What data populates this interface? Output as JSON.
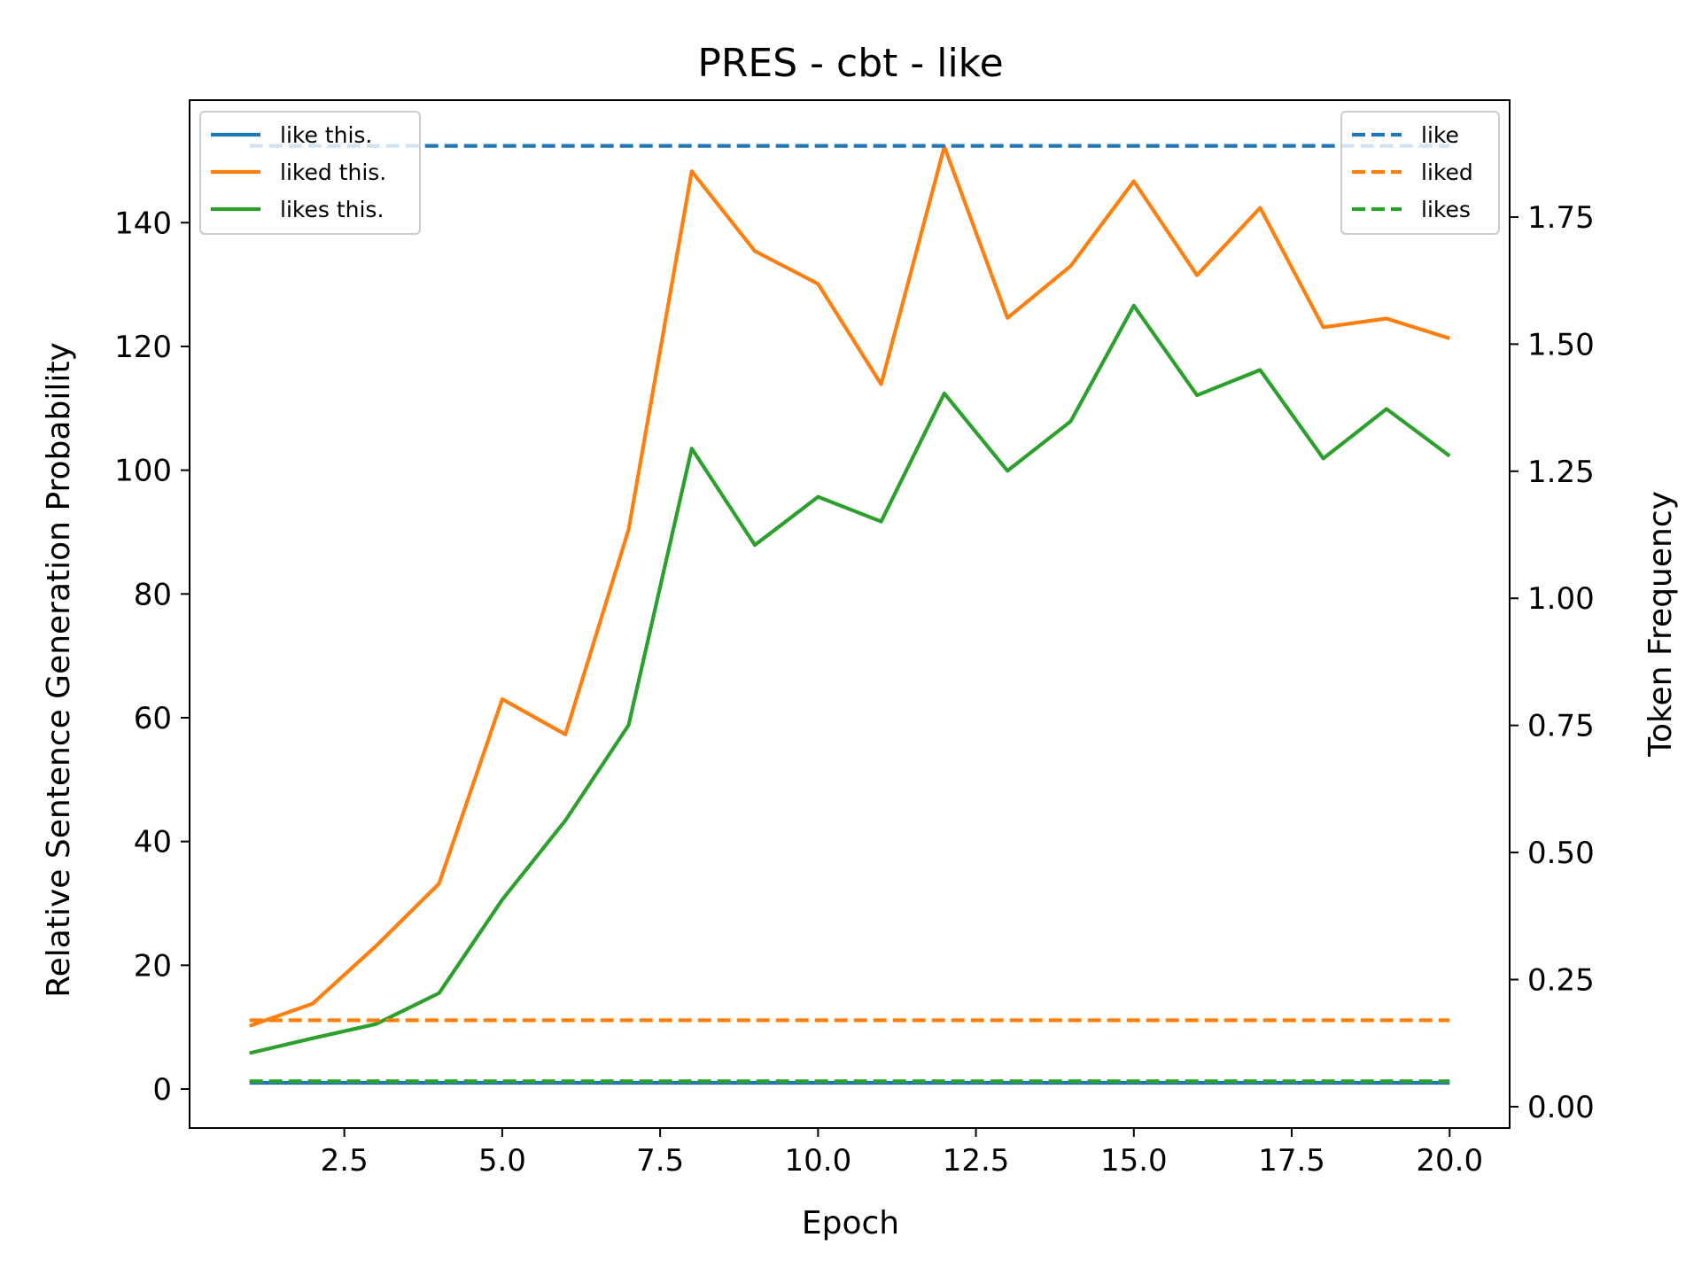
{
  "chart_data": {
    "type": "line",
    "title": "PRES - cbt - like",
    "xlabel": "Epoch",
    "ylabel": "Relative Sentence Generation Probability",
    "y2label": "Token Frequency",
    "xlim": [
      0.05,
      20.95
    ],
    "ylim": [
      -6.3,
      159.8
    ],
    "y2lim": [
      -0.042,
      1.98
    ],
    "xticks": [
      "2.5",
      "5.0",
      "7.5",
      "10.0",
      "12.5",
      "15.0",
      "17.5",
      "20.0"
    ],
    "yticks": [
      "0",
      "20",
      "40",
      "60",
      "80",
      "100",
      "120",
      "140"
    ],
    "y2ticks": [
      "0.00",
      "0.25",
      "0.50",
      "0.75",
      "1.00",
      "1.25",
      "1.50",
      "1.75"
    ],
    "x": [
      1,
      2,
      3,
      4,
      5,
      6,
      7,
      8,
      9,
      10,
      11,
      12,
      13,
      14,
      15,
      16,
      17,
      18,
      19,
      20
    ],
    "series": [
      {
        "name": "like this.",
        "axis": "left",
        "style": "solid",
        "color": "#1f77b4",
        "values": [
          1,
          1,
          1,
          1,
          1,
          1,
          1,
          1,
          1,
          1,
          1,
          1,
          1,
          1,
          1,
          1,
          1,
          1,
          1,
          1
        ]
      },
      {
        "name": "liked this.",
        "axis": "left",
        "style": "solid",
        "color": "#ff7f0e",
        "values": [
          10.2,
          13.8,
          23.1,
          33.2,
          63.0,
          57.3,
          90.4,
          148.3,
          135.4,
          130.1,
          113.9,
          152.3,
          124.6,
          133.0,
          146.7,
          131.5,
          142.4,
          123.1,
          124.5,
          121.3
        ]
      },
      {
        "name": "likes this.",
        "axis": "left",
        "style": "solid",
        "color": "#2ca02c",
        "values": [
          5.8,
          8.2,
          10.5,
          15.5,
          30.6,
          43.4,
          58.8,
          103.5,
          87.9,
          95.7,
          91.7,
          112.4,
          99.9,
          107.9,
          126.6,
          112.1,
          116.2,
          101.9,
          109.9,
          102.3
        ]
      },
      {
        "name": "like",
        "axis": "right",
        "style": "dashed",
        "color": "#1f77b4",
        "values": [
          1.89,
          1.89,
          1.89,
          1.89,
          1.89,
          1.89,
          1.89,
          1.89,
          1.89,
          1.89,
          1.89,
          1.89,
          1.89,
          1.89,
          1.89,
          1.89,
          1.89,
          1.89,
          1.89,
          1.89
        ]
      },
      {
        "name": "liked",
        "axis": "right",
        "style": "dashed",
        "color": "#ff7f0e",
        "values": [
          0.17,
          0.17,
          0.17,
          0.17,
          0.17,
          0.17,
          0.17,
          0.17,
          0.17,
          0.17,
          0.17,
          0.17,
          0.17,
          0.17,
          0.17,
          0.17,
          0.17,
          0.17,
          0.17,
          0.17
        ]
      },
      {
        "name": "likes",
        "axis": "right",
        "style": "dashed",
        "color": "#2ca02c",
        "values": [
          0.05,
          0.05,
          0.05,
          0.05,
          0.05,
          0.05,
          0.05,
          0.05,
          0.05,
          0.05,
          0.05,
          0.05,
          0.05,
          0.05,
          0.05,
          0.05,
          0.05,
          0.05,
          0.05,
          0.05
        ]
      }
    ],
    "legend_left": "top-left",
    "legend_right": "top-right",
    "grid": false
  }
}
